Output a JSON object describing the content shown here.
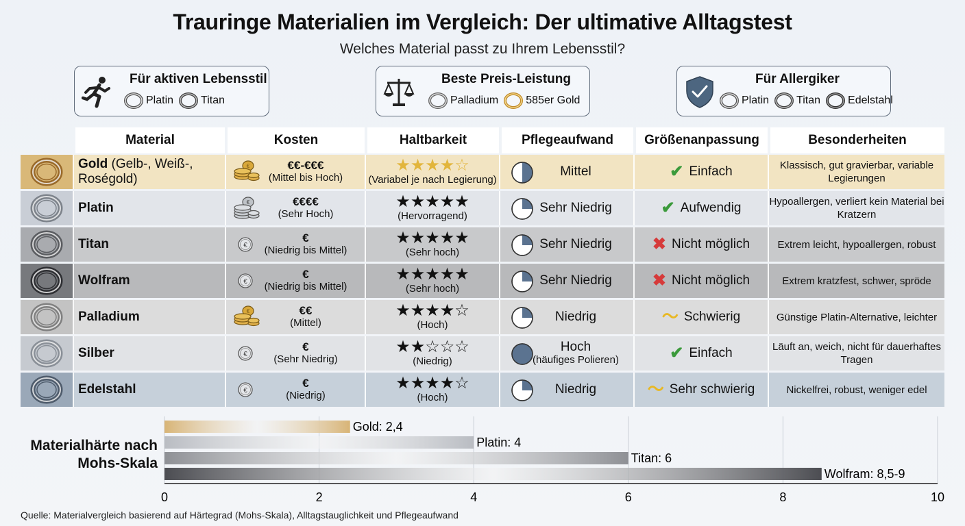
{
  "title": "Trauringe Materialien im Vergleich: Der ultimative Alltagstest",
  "subtitle": "Welches Material passt zu Ihrem Lebensstil?",
  "cards": [
    {
      "title": "Für aktiven Lebensstil",
      "icon": "runner-icon",
      "rings": [
        "Platin",
        "Titan"
      ]
    },
    {
      "title": "Beste Preis-Leistung",
      "icon": "scale-icon",
      "rings": [
        "Palladium",
        "585er Gold"
      ]
    },
    {
      "title": "Für Allergiker",
      "icon": "shield-check-icon",
      "rings": [
        "Platin",
        "Titan",
        "Edelstahl"
      ]
    }
  ],
  "table": {
    "headers": [
      "Material",
      "Kosten",
      "Haltbarkeit",
      "Pflegeaufwand",
      "Größenanpassung",
      "Besonderheiten"
    ],
    "rows": [
      {
        "material": "Gold",
        "material_extra": " (Gelb-, Weiß-, Roségold)",
        "cost": "€€-€€€",
        "cost_note": "(Mittel bis Hoch)",
        "coin": "gold-coin-stack-icon",
        "stars": "★★★★☆",
        "star_color": "#e2b53c",
        "durability": "(Variabel je nach Legierung)",
        "care": "Mittel",
        "care_note": "",
        "care_fill": 0.5,
        "resize": "Einfach",
        "resize_mark": "✔",
        "resize_color": "#3b9a3b",
        "notes": "Klassisch, gut gravierbar, variable Legierungen",
        "bg": "#f2e4c2",
        "ringbg": "#d9b878"
      },
      {
        "material": "Platin",
        "material_extra": "",
        "cost": "€€€€",
        "cost_note": "(Sehr Hoch)",
        "coin": "silver-coin-stack-icon",
        "stars": "★★★★★",
        "star_color": "#111111",
        "durability": "(Hervorragend)",
        "care": "Sehr Niedrig",
        "care_note": "",
        "care_fill": 0.25,
        "resize": "Aufwendig",
        "resize_mark": "✔",
        "resize_color": "#3b9a3b",
        "notes": "Hypoallergen, verliert kein Material bei Kratzern",
        "bg": "#e2e5ea",
        "ringbg": "#c9ced6"
      },
      {
        "material": "Titan",
        "material_extra": "",
        "cost": "€",
        "cost_note": "(Niedrig bis Mittel)",
        "coin": "single-coin-icon",
        "stars": "★★★★★",
        "star_color": "#111111",
        "durability": "(Sehr hoch)",
        "care": "Sehr Niedrig",
        "care_note": "",
        "care_fill": 0.25,
        "resize": "Nicht möglich",
        "resize_mark": "✖",
        "resize_color": "#d63a3a",
        "notes": "Extrem leicht, hypoallergen, robust",
        "bg": "#c8c9cb",
        "ringbg": "#a9abaf"
      },
      {
        "material": "Wolfram",
        "material_extra": "",
        "cost": "€",
        "cost_note": "(Niedrig bis Mittel)",
        "coin": "single-coin-icon",
        "stars": "★★★★★",
        "star_color": "#111111",
        "durability": "(Sehr hoch)",
        "care": "Sehr Niedrig",
        "care_note": "",
        "care_fill": 0.25,
        "resize": "Nicht möglich",
        "resize_mark": "✖",
        "resize_color": "#d63a3a",
        "notes": "Extrem kratzfest, schwer, spröde",
        "bg": "#b8b9bb",
        "ringbg": "#77797d"
      },
      {
        "material": "Palladium",
        "material_extra": "",
        "cost": "€€",
        "cost_note": "(Mittel)",
        "coin": "gold-coin-stack-icon",
        "stars": "★★★★☆",
        "star_color": "#111111",
        "durability": "(Hoch)",
        "care": "Niedrig",
        "care_note": "",
        "care_fill": 0.25,
        "resize": "Schwierig",
        "resize_mark": "〜",
        "resize_color": "#e8b824",
        "notes": "Günstige Platin-Alternative, leichter",
        "bg": "#dcdcdc",
        "ringbg": "#c3c3c3"
      },
      {
        "material": "Silber",
        "material_extra": "",
        "cost": "€",
        "cost_note": "(Sehr Niedrig)",
        "coin": "single-coin-icon",
        "stars": "★★☆☆☆",
        "star_color": "#111111",
        "durability": "(Niedrig)",
        "care": "Hoch",
        "care_note": "(häufiges Polieren)",
        "care_fill": 1.0,
        "resize": "Einfach",
        "resize_mark": "✔",
        "resize_color": "#3b9a3b",
        "notes": "Läuft an, weich, nicht für dauerhaftes Tragen",
        "bg": "#e1e3e6",
        "ringbg": "#c6cad0"
      },
      {
        "material": "Edelstahl",
        "material_extra": "",
        "cost": "€",
        "cost_note": "(Niedrig)",
        "coin": "single-coin-icon",
        "stars": "★★★★☆",
        "star_color": "#111111",
        "durability": "(Hoch)",
        "care": "Niedrig",
        "care_note": "",
        "care_fill": 0.25,
        "resize": "Sehr schwierig",
        "resize_mark": "〜",
        "resize_color": "#e8b824",
        "notes": "Nickelfrei, robust, weniger edel",
        "bg": "#c6d0da",
        "ringbg": "#9aa8b8"
      }
    ]
  },
  "hardness_title": "Materialhärte nach Mohs-Skala",
  "chart_data": {
    "type": "bar",
    "orientation": "horizontal",
    "title": "Materialhärte nach Mohs-Skala",
    "categories": [
      "Gold",
      "Platin",
      "Titan",
      "Wolfram"
    ],
    "values": [
      2.4,
      4,
      6,
      8.5
    ],
    "labels": [
      "Gold: 2,4",
      "Platin: 4",
      "Titan: 6",
      "Wolfram: 8,5-9"
    ],
    "xlim": [
      0,
      10
    ],
    "xticks": [
      0,
      2,
      4,
      6,
      8,
      10
    ],
    "grid": true,
    "colors": [
      "#d8b476",
      "#b9bcc2",
      "#8e9095",
      "#4c4d52"
    ]
  },
  "source": "Quelle: Materialvergleich basierend auf Härtegrad (Mohs-Skala), Alltagstauglichkeit und Pflegeaufwand"
}
